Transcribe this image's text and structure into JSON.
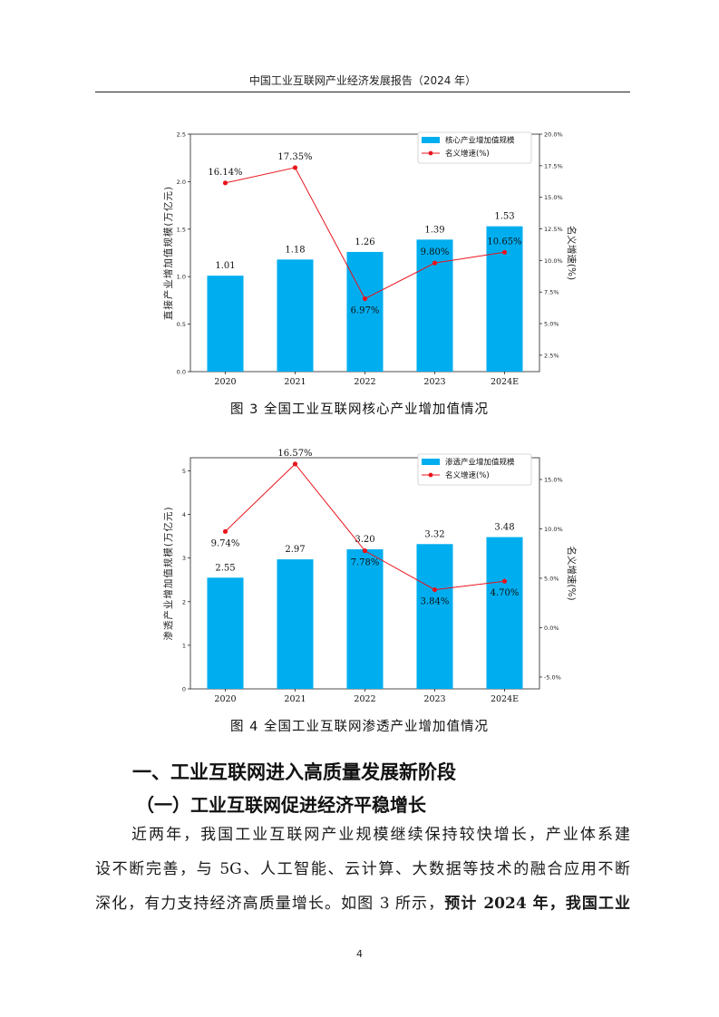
{
  "header": {
    "title": "中国工业互联网产业经济发展报告（2024 年）"
  },
  "figures": [
    {
      "caption": "图 3    全国工业互联网核心产业增加值情况",
      "chart_data": {
        "type": "bar",
        "categories": [
          "2020",
          "2021",
          "2022",
          "2023",
          "2024E"
        ],
        "series": [
          {
            "name": "核心产业增加值规模",
            "kind": "bar",
            "axis": "left",
            "values": [
              1.01,
              1.18,
              1.26,
              1.39,
              1.53
            ],
            "labels": [
              "1.01",
              "1.18",
              "1.26",
              "1.39",
              "1.53"
            ]
          },
          {
            "name": "名义增速(%)",
            "kind": "line",
            "axis": "right",
            "values": [
              16.14,
              17.35,
              6.97,
              9.8,
              10.65
            ],
            "labels": [
              "16.14%",
              "17.35%",
              "6.97%",
              "9.80%",
              "10.65%"
            ]
          }
        ],
        "ylabel": "直接产业增加值规模(万亿元)",
        "y2label": "名义增速(%)",
        "ylim": [
          0,
          2.5
        ],
        "yticks": [
          "0.0",
          "0.5",
          "1.0",
          "1.5",
          "2.0",
          "2.5"
        ],
        "y2lim": [
          1.2,
          20.0
        ],
        "y2ticks": [
          "2.5%",
          "5.0%",
          "7.5%",
          "10.0%",
          "12.5%",
          "15.0%",
          "17.5%",
          "20.0%"
        ],
        "legend": "top-right",
        "bar_color": "#00aeef",
        "line_color": "#e8141c"
      }
    },
    {
      "caption": "图 4    全国工业互联网渗透产业增加值情况",
      "chart_data": {
        "type": "bar",
        "categories": [
          "2020",
          "2021",
          "2022",
          "2023",
          "2024E"
        ],
        "series": [
          {
            "name": "渗透产业增加值规模",
            "kind": "bar",
            "axis": "left",
            "values": [
              2.55,
              2.97,
              3.2,
              3.32,
              3.48
            ],
            "labels": [
              "2.55",
              "2.97",
              "3.20",
              "3.32",
              "3.48"
            ]
          },
          {
            "name": "名义增速(%)",
            "kind": "line",
            "axis": "right",
            "values": [
              9.74,
              16.57,
              7.78,
              3.84,
              4.7
            ],
            "labels": [
              "9.74%",
              "16.57%",
              "7.78%",
              "3.84%",
              "4.70%"
            ]
          }
        ],
        "ylabel": "渗透产业增加值规模(万亿元)",
        "y2label": "名义增速(%)",
        "ylim": [
          0,
          5.3
        ],
        "yticks": [
          "0",
          "1",
          "2",
          "3",
          "4",
          "5"
        ],
        "y2lim": [
          -6.2,
          17.2
        ],
        "y2ticks": [
          "-5.0%",
          "0.0%",
          "5.0%",
          "10.0%",
          "15.0%"
        ],
        "legend": "top-right",
        "bar_color": "#00aeef",
        "line_color": "#e8141c"
      }
    }
  ],
  "section": {
    "heading1": "一、工业互联网进入高质量发展新阶段",
    "heading2": "（一）工业互联网促进经济平稳增长",
    "para_line1": "近两年，我国工业互联网产业规模继续保持较快增长，产业体系建",
    "para_line2": "设不断完善，与 5G、人工智能、云计算、大数据等技术的融合应用不断",
    "para_line3_normal": "深化，有力支持经济高质量增长。如图 3 所示，",
    "para_line3_bold": "预计 2024 年，我国工业"
  },
  "page_number": "4"
}
